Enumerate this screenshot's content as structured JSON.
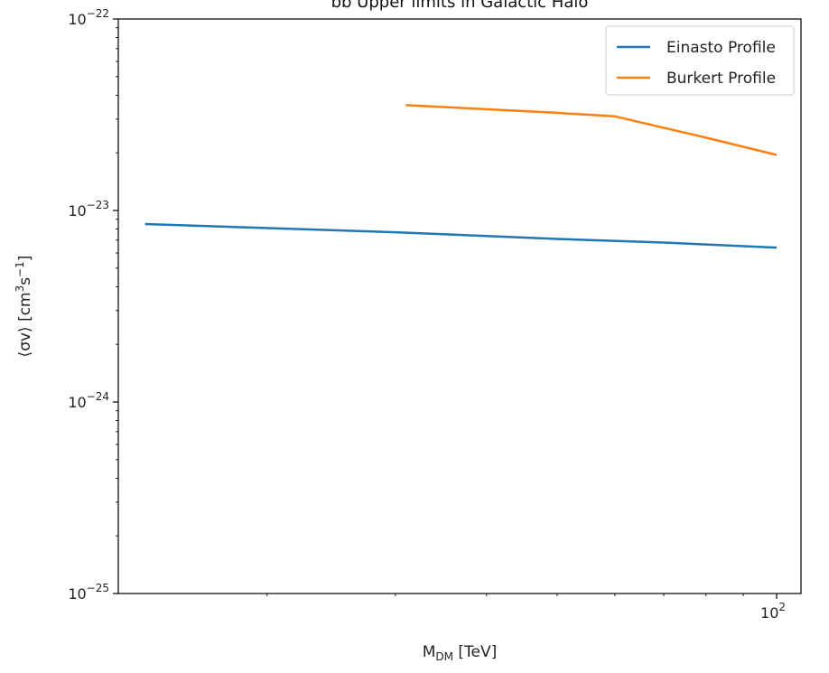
{
  "chart_data": {
    "type": "line",
    "title": "bb Upper limits in Galactic Halo",
    "xlabel": "M_DM [TeV]",
    "ylabel": "⟨σv⟩ [cm³s⁻¹]",
    "x_scale": "log",
    "y_scale": "log",
    "xlim": [
      12.5,
      108
    ],
    "ylim": [
      1e-25,
      1e-22
    ],
    "grid": false,
    "legend_position": "top-right",
    "x_major_ticks": [
      {
        "value": 100,
        "label": "10",
        "exp": "2"
      }
    ],
    "y_major_ticks": [
      {
        "value": 1e-22,
        "label": "10",
        "exp": "−22"
      },
      {
        "value": 1e-23,
        "label": "10",
        "exp": "−23"
      },
      {
        "value": 1e-24,
        "label": "10",
        "exp": "−24"
      },
      {
        "value": 1e-25,
        "label": "10",
        "exp": "−25"
      }
    ],
    "series": [
      {
        "name": "Einasto Profile",
        "color": "#1f77b4",
        "x": [
          13.6,
          30,
          50,
          70,
          100
        ],
        "y": [
          8.5e-24,
          7.7e-24,
          7.1e-24,
          6.8e-24,
          6.4e-24
        ]
      },
      {
        "name": "Burkert Profile",
        "color": "#ff7f0e",
        "x": [
          31,
          49,
          60,
          80,
          100
        ],
        "y": [
          3.55e-23,
          3.25e-23,
          3.1e-23,
          2.4e-23,
          1.95e-23
        ]
      }
    ]
  }
}
